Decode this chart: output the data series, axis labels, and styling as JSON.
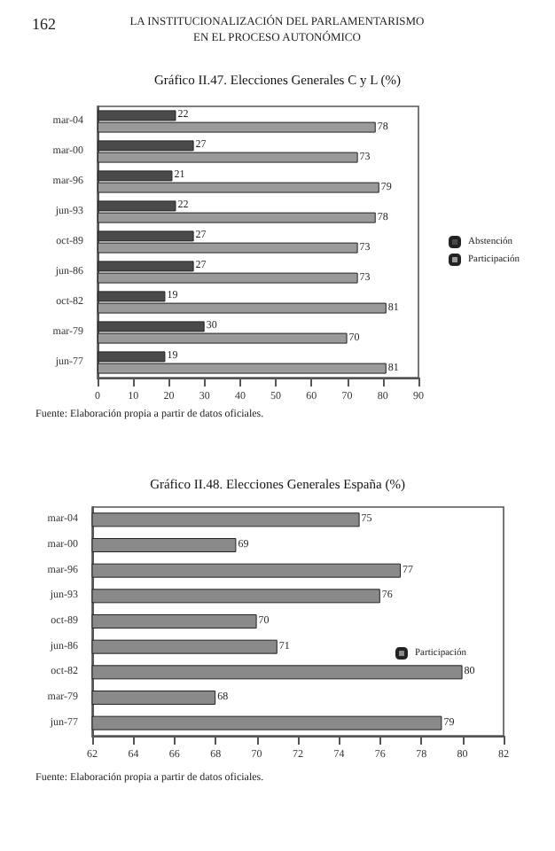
{
  "chart_data": [
    {
      "type": "bar",
      "orientation": "horizontal",
      "title": "Gráfico II.47. Elecciones Generales C y L (%)",
      "categories": [
        "mar-04",
        "mar-00",
        "mar-96",
        "jun-93",
        "oct-89",
        "jun-86",
        "oct-82",
        "mar-79",
        "jun-77"
      ],
      "series": [
        {
          "name": "Abstención",
          "color": "#4a4a4a",
          "values": [
            22,
            27,
            21,
            22,
            27,
            27,
            19,
            30,
            19
          ]
        },
        {
          "name": "Participación",
          "color": "#9a9a9a",
          "values": [
            78,
            73,
            79,
            78,
            73,
            73,
            81,
            70,
            81
          ]
        }
      ],
      "xlim": [
        0,
        90
      ],
      "xticks": [
        0,
        10,
        20,
        30,
        40,
        50,
        60,
        70,
        80,
        90
      ],
      "data_labels": true,
      "grid": false,
      "legend": "right",
      "annotations": [
        "162",
        "LA INSTITUCIONALIZACIÓN DEL PARLAMENTARISMO",
        "EN EL PROCESO AUTONÓMICO",
        "Fuente: Elaboración propia a partir de datos oficiales."
      ]
    },
    {
      "type": "bar",
      "orientation": "horizontal",
      "title": "Gráfico II.48. Elecciones Generales España (%)",
      "categories": [
        "mar-04",
        "mar-00",
        "mar-96",
        "jun-93",
        "oct-89",
        "jun-86",
        "oct-82",
        "mar-79",
        "jun-77"
      ],
      "series": [
        {
          "name": "Participación",
          "color": "#8a8a8a",
          "values": [
            75,
            69,
            77,
            76,
            70,
            71,
            80,
            68,
            79
          ]
        }
      ],
      "xlim": [
        62,
        82
      ],
      "xticks": [
        62,
        64,
        66,
        68,
        70,
        72,
        74,
        76,
        78,
        80,
        82
      ],
      "data_labels": true,
      "grid": false,
      "legend": "right",
      "annotations": [
        "Fuente: Elaboración propia a partir de datos oficiales."
      ]
    }
  ]
}
